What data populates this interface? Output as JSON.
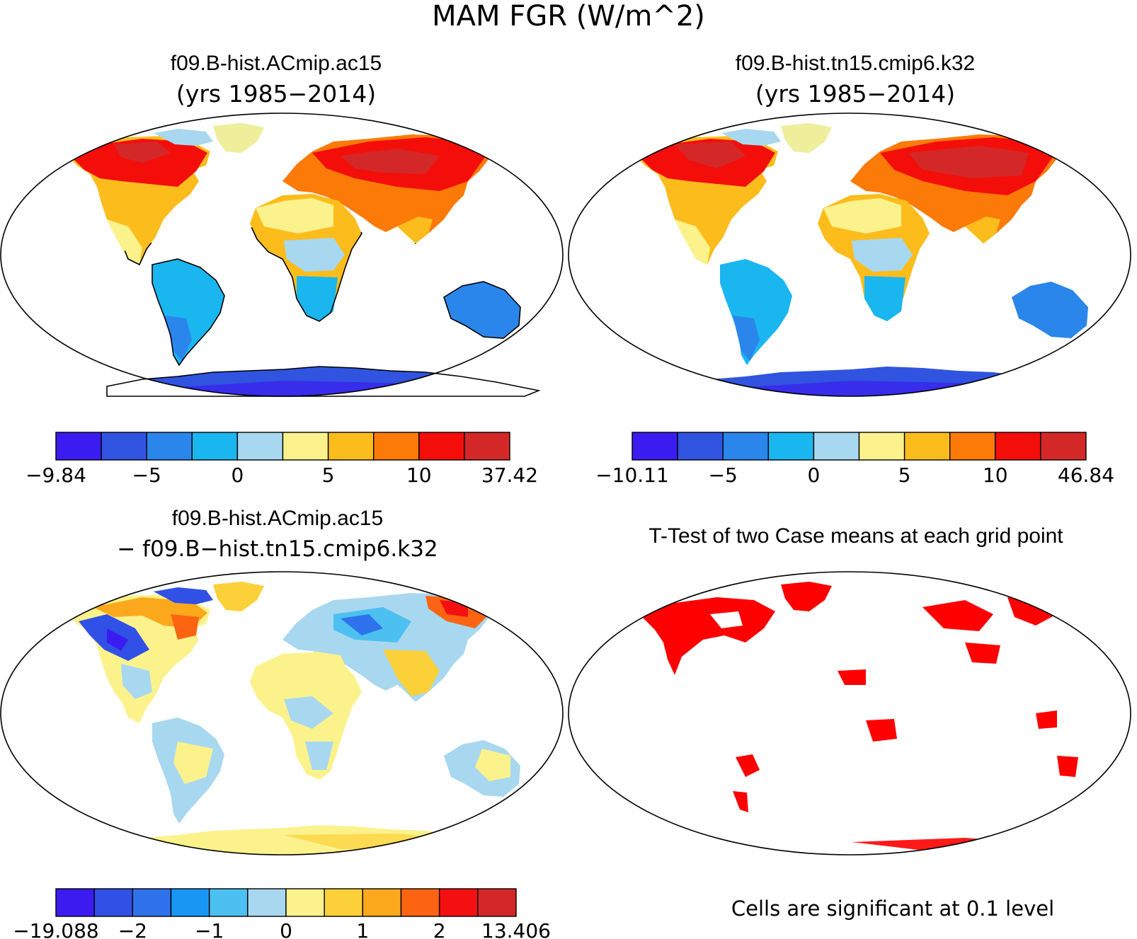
{
  "main_title": "MAM FGR (W/m^2)",
  "colors": {
    "land_outline": "#000000",
    "frame": "#000000",
    "significant": "#ff0000"
  },
  "panels": [
    {
      "id": "case1",
      "title_line1": "f09.B-hist.ACmip.ac15",
      "title_line2": "(yrs 1985−2014)",
      "colorbar": {
        "colors": [
          "#3b1cf0",
          "#3054e0",
          "#2b86ec",
          "#1ab6f0",
          "#a8d8f0",
          "#fcf28c",
          "#fcbc1c",
          "#fc7a08",
          "#f40e0a",
          "#d42828"
        ],
        "labels": [
          "−9.84",
          "−5",
          "0",
          "5",
          "10",
          "37.42"
        ]
      }
    },
    {
      "id": "case2",
      "title_line1": "f09.B-hist.tn15.cmip6.k32",
      "title_line2": "(yrs 1985−2014)",
      "colorbar": {
        "colors": [
          "#3b1cf0",
          "#3054e0",
          "#2b86ec",
          "#1ab6f0",
          "#a8d8f0",
          "#fcf28c",
          "#fcbc1c",
          "#fc7a08",
          "#f40e0a",
          "#d42828"
        ],
        "labels": [
          "−10.11",
          "−5",
          "0",
          "5",
          "10",
          "46.84"
        ]
      }
    },
    {
      "id": "diff",
      "title_line1": "f09.B-hist.ACmip.ac15",
      "title_line2": "− f09.B−hist.tn15.cmip6.k32",
      "colorbar": {
        "colors": [
          "#3b1cf0",
          "#3050e6",
          "#2e72ec",
          "#1896f4",
          "#4cc0f0",
          "#a8d8f0",
          "#fcf28c",
          "#fcd038",
          "#fca81c",
          "#fc6412",
          "#f41010",
          "#d42828"
        ],
        "labels": [
          "−19.088",
          "−2",
          "−1",
          "0",
          "1",
          "2",
          "13.406"
        ]
      }
    },
    {
      "id": "ttest",
      "title_line1": "T-Test of two Case means at each grid point",
      "footnote": "Cells are significant at 0.1 level"
    }
  ]
}
